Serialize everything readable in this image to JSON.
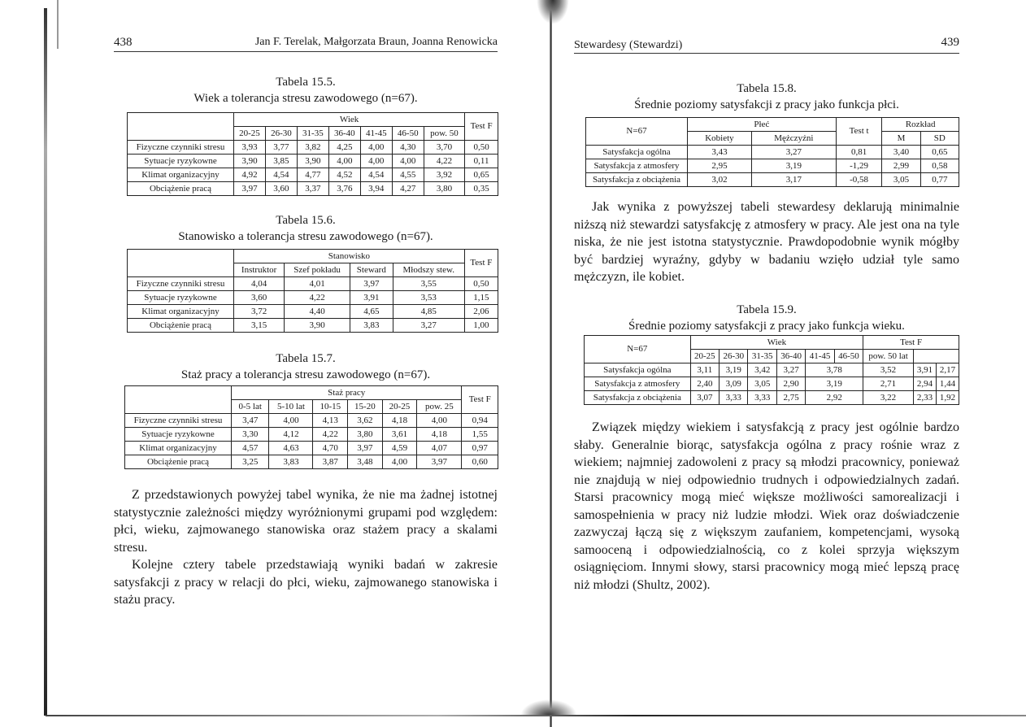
{
  "left_page": {
    "page_number": "438",
    "running_head": "Jan F. Terelak, Małgorzata Braun, Joanna Renowicka",
    "tables": [
      {
        "label": "Tabela 15.5.",
        "title": "Wiek a tolerancja stresu zawodowego (n=67).",
        "group_header": "Wiek",
        "test_header": "Test F",
        "columns": [
          "20-25",
          "26-30",
          "31-35",
          "36-40",
          "41-45",
          "46-50",
          "pow. 50"
        ],
        "rows": [
          {
            "label": "Fizyczne czynniki stresu",
            "values": [
              "3,93",
              "3,77",
              "3,82",
              "4,25",
              "4,00",
              "4,30",
              "3,70"
            ],
            "test": "0,50"
          },
          {
            "label": "Sytuacje ryzykowne",
            "values": [
              "3,90",
              "3,85",
              "3,90",
              "4,00",
              "4,00",
              "4,00",
              "4,22"
            ],
            "test": "0,11"
          },
          {
            "label": "Klimat organizacyjny",
            "values": [
              "4,92",
              "4,54",
              "4,77",
              "4,52",
              "4,54",
              "4,55",
              "3,92"
            ],
            "test": "0,65"
          },
          {
            "label": "Obciążenie pracą",
            "values": [
              "3,97",
              "3,60",
              "3,37",
              "3,76",
              "3,94",
              "4,27",
              "3,80"
            ],
            "test": "0,35"
          }
        ]
      },
      {
        "label": "Tabela 15.6.",
        "title": "Stanowisko a tolerancja stresu zawodowego (n=67).",
        "group_header": "Stanowisko",
        "test_header": "Test F",
        "columns": [
          "Instruktor",
          "Szef pokładu",
          "Steward",
          "Młodszy stew."
        ],
        "rows": [
          {
            "label": "Fizyczne czynniki stresu",
            "values": [
              "4,04",
              "4,01",
              "3,97",
              "3,55"
            ],
            "test": "0,50"
          },
          {
            "label": "Sytuacje ryzykowne",
            "values": [
              "3,60",
              "4,22",
              "3,91",
              "3,53"
            ],
            "test": "1,15"
          },
          {
            "label": "Klimat organizacyjny",
            "values": [
              "3,72",
              "4,40",
              "4,65",
              "4,85"
            ],
            "test": "2,06"
          },
          {
            "label": "Obciążenie pracą",
            "values": [
              "3,15",
              "3,90",
              "3,83",
              "3,27"
            ],
            "test": "1,00"
          }
        ]
      },
      {
        "label": "Tabela 15.7.",
        "title": "Staż pracy a tolerancja stresu zawodowego (n=67).",
        "group_header": "Staż pracy",
        "test_header": "Test F",
        "columns": [
          "0-5 lat",
          "5-10 lat",
          "10-15",
          "15-20",
          "20-25",
          "pow. 25"
        ],
        "rows": [
          {
            "label": "Fizyczne czynniki stresu",
            "values": [
              "3,47",
              "4,00",
              "4,13",
              "3,62",
              "4,18",
              "4,00"
            ],
            "test": "0,94"
          },
          {
            "label": "Sytuacje ryzykowne",
            "values": [
              "3,30",
              "4,12",
              "4,22",
              "3,80",
              "3,61",
              "4,18"
            ],
            "test": "1,55"
          },
          {
            "label": "Klimat organizacyjny",
            "values": [
              "4,57",
              "4,63",
              "4,70",
              "3,97",
              "4,59",
              "4,07"
            ],
            "test": "0,97"
          },
          {
            "label": "Obciążenie pracą",
            "values": [
              "3,25",
              "3,83",
              "3,87",
              "3,48",
              "4,00",
              "3,97"
            ],
            "test": "0,60"
          }
        ]
      }
    ],
    "paragraphs": [
      "Z przedstawionych powyżej tabel wynika, że nie ma żadnej istotnej statystycznie zależności między wyróżnionymi grupami pod względem: płci, wieku, zajmowanego stanowiska oraz stażem pracy a skalami stresu.",
      "Kolejne cztery tabele przedstawiają wyniki badań w zakresie satysfakcji z pracy w relacji do płci, wieku, zajmowanego stanowiska i stażu pracy."
    ]
  },
  "right_page": {
    "page_number": "439",
    "running_head": "Stewardesy (Stewardzi)",
    "table_15_8": {
      "label": "Tabela 15.8.",
      "title": "Średnie poziomy satysfakcji z pracy jako funkcja płci.",
      "corner": "N=67",
      "group1": "Płeć",
      "group1_cols": [
        "Kobiety",
        "Mężczyźni"
      ],
      "test_header": "Test t",
      "group2": "Rozkład",
      "group2_cols": [
        "M",
        "SD"
      ],
      "rows": [
        {
          "label": "Satysfakcja ogólna",
          "values": [
            "3,43",
            "3,27",
            "0,81",
            "3,40",
            "0,65"
          ]
        },
        {
          "label": "Satysfakcja z atmosfery",
          "values": [
            "2,95",
            "3,19",
            "-1,29",
            "2,99",
            "0,58"
          ]
        },
        {
          "label": "Satysfakcja z obciążenia",
          "values": [
            "3,02",
            "3,17",
            "-0,58",
            "3,05",
            "0,77"
          ]
        }
      ]
    },
    "paragraph_1": "Jak wynika z powyższej tabeli stewardesy deklarują minimalnie niższą niż stewardzi satysfakcję z atmosfery w pracy. Ale jest ona na tyle niska, że nie jest istotna statystycznie. Prawdopodobnie wynik mógłby być bardziej wyraźny, gdyby w badaniu wzięło udział tyle samo mężczyzn, ile kobiet.",
    "table_15_9": {
      "label": "Tabela 15.9.",
      "title": "Średnie poziomy satysfakcji z pracy jako funkcja wieku.",
      "corner": "N=67",
      "group_header": "Wiek",
      "test_header": "Test F",
      "columns": [
        "20-25",
        "26-30",
        "31-35",
        "36-40",
        "41-45",
        "46-50",
        "pow. 50 lat"
      ],
      "rows": [
        {
          "label": "Satysfakcja ogólna",
          "values": [
            "3,11",
            "3,19",
            "3,42",
            "3,27",
            "3,78",
            "3,52",
            "3,91",
            "2,17"
          ]
        },
        {
          "label": "Satysfakcja z atmosfery",
          "values": [
            "2,40",
            "3,09",
            "3,05",
            "2,90",
            "3,19",
            "2,71",
            "2,94",
            "1,44"
          ]
        },
        {
          "label": "Satysfakcja z obciążenia",
          "values": [
            "3,07",
            "3,33",
            "3,33",
            "2,75",
            "2,92",
            "3,22",
            "2,33",
            "1,92"
          ]
        }
      ]
    },
    "paragraph_2": "Związek między wiekiem i satysfakcją z pracy jest ogólnie bardzo słaby. Generalnie biorąc, satysfakcja ogólna z pracy rośnie wraz z wiekiem; najmniej zadowoleni z pracy są młodzi pracownicy, ponieważ nie znajdują w niej odpowiednio trudnych i odpowiedzialnych zadań. Starsi pracownicy mogą mieć większe możliwości samorealizacji i samospełnienia w pracy niż ludzie młodzi. Wiek oraz doświadczenie zazwyczaj łączą się z większym zaufaniem, kompetencjami, wysoką samooceną i odpowiedzialnością, co z kolei sprzyja większym osiągnięciom. Innymi słowy, starsi pracownicy mogą mieć lepszą pracę niż młodzi (Shultz, 2002)."
  }
}
